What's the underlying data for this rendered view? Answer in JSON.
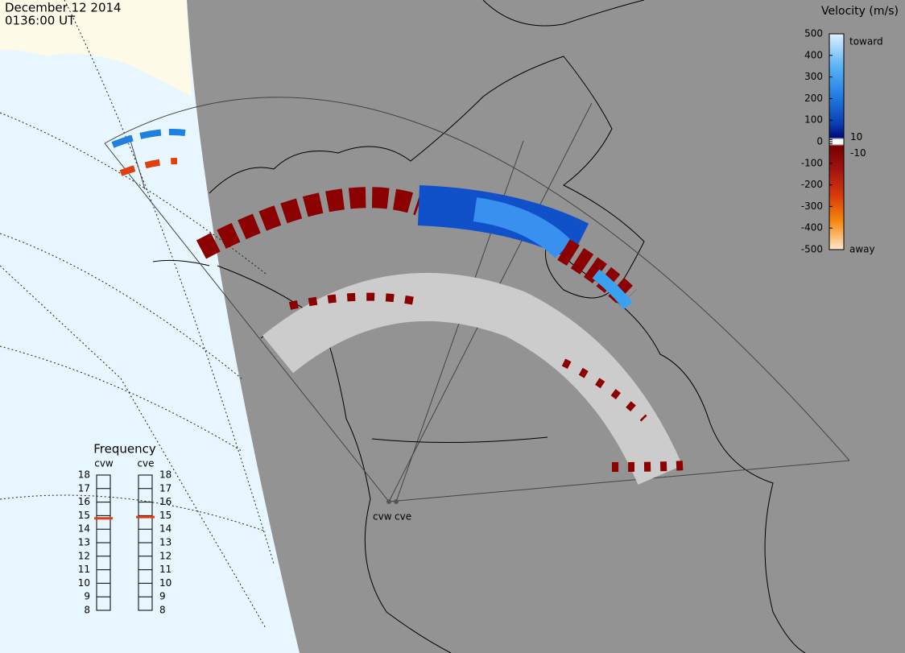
{
  "header": {
    "date": "December 12 2014",
    "time": "0136:00 UT"
  },
  "colorbar": {
    "title": "Velocity (m/s)",
    "range": [
      -500,
      500
    ],
    "ticks": [
      500,
      400,
      300,
      200,
      100,
      10,
      0,
      -10,
      -100,
      -200,
      -300,
      -400,
      -500
    ],
    "top_label": "toward",
    "bottom_label": "away"
  },
  "frequency": {
    "title": "Frequency",
    "range": [
      8,
      18
    ],
    "ticks": [
      18,
      17,
      16,
      15,
      14,
      13,
      12,
      11,
      10,
      9,
      8
    ],
    "radars": [
      {
        "name": "cvw",
        "value": 14.8
      },
      {
        "name": "cve",
        "value": 14.9
      }
    ]
  },
  "radars": [
    "cvw",
    "cve"
  ]
}
